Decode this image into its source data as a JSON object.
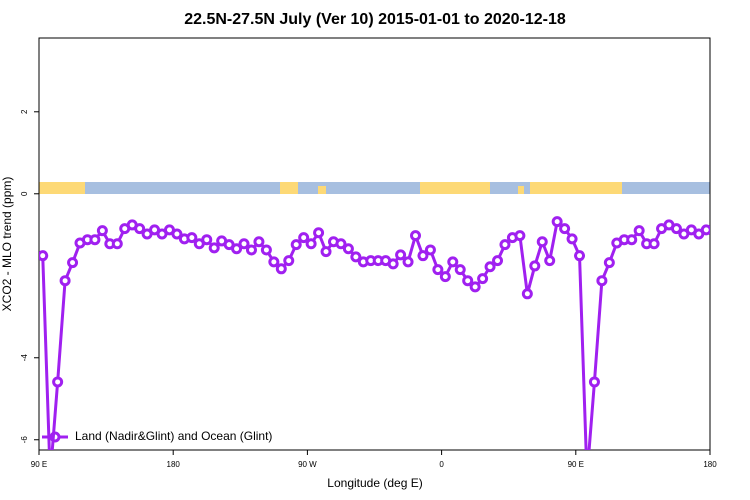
{
  "chart_data": {
    "type": "line",
    "title": "22.5N-27.5N July (Ver 10)   2015-01-01 to 2020-12-18",
    "x_label": "Longitude (deg E)",
    "y_label": "XCO2 - MLO trend (ppm)",
    "xlim": [
      90,
      540
    ],
    "ylim": [
      -6.25,
      3.8
    ],
    "xticks": [
      {
        "value": 90,
        "label": "90 E"
      },
      180,
      {
        "value": 270,
        "label": "90 W"
      },
      {
        "value": 360,
        "label": "0"
      },
      {
        "value": 450,
        "label": "90 E"
      },
      {
        "value": 540,
        "label": "180"
      }
    ],
    "yticks": [
      -6,
      -4,
      0,
      2
    ],
    "legend": "bottom-left",
    "x": [
      92.5,
      97.5,
      102.5,
      107.5,
      112.5,
      117.5,
      122.5,
      127.5,
      132.5,
      137.5,
      142.5,
      147.5,
      152.5,
      157.5,
      162.5,
      167.5,
      172.5,
      177.5,
      182.5,
      187.5,
      192.5,
      197.5,
      202.5,
      207.5,
      212.5,
      217.5,
      222.5,
      227.5,
      232.5,
      237.5,
      242.5,
      247.5,
      252.5,
      257.5,
      262.5,
      267.5,
      272.5,
      277.5,
      282.5,
      287.5,
      292.5,
      297.5,
      302.5,
      307.5,
      312.5,
      317.5,
      322.5,
      327.5,
      332.5,
      337.5,
      342.5,
      347.5,
      352.5,
      357.5,
      362.5,
      367.5,
      372.5,
      377.5,
      382.5,
      387.5,
      392.5,
      397.5,
      402.5,
      407.5,
      412.5,
      417.5,
      422.5,
      427.5,
      432.5,
      437.5,
      442.5,
      447.5,
      452.5,
      457.5,
      462.5,
      467.5,
      472.5,
      477.5,
      482.5,
      487.5,
      492.5,
      497.5,
      502.5,
      507.5,
      512.5,
      517.5,
      522.5,
      527.5,
      532.5,
      537.5
    ],
    "series": [
      {
        "name": "Land (Nadir&Glint) and Ocean (Glint)",
        "color": "#a020f0",
        "values": [
          -1.51,
          -6.9,
          -4.59,
          -2.12,
          -1.68,
          -1.2,
          -1.12,
          -1.12,
          -0.9,
          -1.22,
          -1.22,
          -0.85,
          -0.76,
          -0.85,
          -0.98,
          -0.88,
          -0.98,
          -0.88,
          -0.98,
          -1.1,
          -1.07,
          -1.22,
          -1.12,
          -1.32,
          -1.15,
          -1.24,
          -1.34,
          -1.22,
          -1.37,
          -1.17,
          -1.37,
          -1.66,
          -1.83,
          -1.63,
          -1.24,
          -1.07,
          -1.22,
          -0.95,
          -1.41,
          -1.17,
          -1.22,
          -1.34,
          -1.54,
          -1.66,
          -1.63,
          -1.63,
          -1.63,
          -1.71,
          -1.49,
          -1.66,
          -1.02,
          -1.51,
          -1.37,
          -1.85,
          -2.02,
          -1.66,
          -1.85,
          -2.12,
          -2.27,
          -2.07,
          -1.78,
          -1.63,
          -1.24,
          -1.07,
          -1.02,
          -2.44,
          -1.76,
          -1.17,
          -1.63,
          -0.68,
          -0.85,
          -1.1,
          -1.51,
          -6.9,
          -4.59,
          -2.12,
          -1.68,
          -1.2,
          -1.12,
          -1.12,
          -0.9,
          -1.22,
          -1.22,
          -0.85,
          -0.76,
          -0.85,
          -0.98,
          -0.88,
          -0.98,
          -0.88
        ]
      }
    ]
  }
}
